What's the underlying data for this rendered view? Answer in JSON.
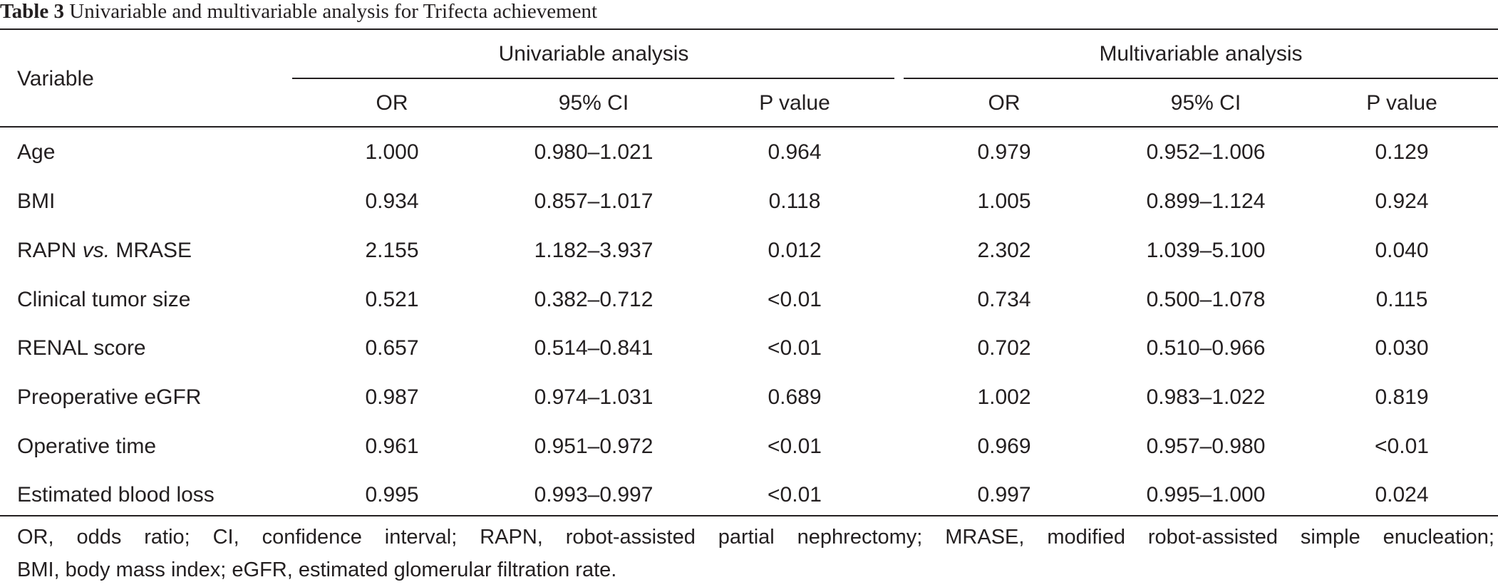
{
  "caption": {
    "label": "Table 3",
    "text": "Univariable and multivariable analysis for Trifecta achievement"
  },
  "header": {
    "variable": "Variable",
    "univariable": "Univariable analysis",
    "multivariable": "Multivariable analysis",
    "or": "OR",
    "ci": "95% CI",
    "p": "P value"
  },
  "rows": [
    {
      "label": "Age",
      "label_italic": "",
      "label_after": "",
      "u_or": "1.000",
      "u_ci": "0.980–1.021",
      "u_p": "0.964",
      "m_or": "0.979",
      "m_ci": "0.952–1.006",
      "m_p": "0.129"
    },
    {
      "label": "BMI",
      "label_italic": "",
      "label_after": "",
      "u_or": "0.934",
      "u_ci": "0.857–1.017",
      "u_p": "0.118",
      "m_or": "1.005",
      "m_ci": "0.899–1.124",
      "m_p": "0.924"
    },
    {
      "label": "RAPN ",
      "label_italic": "vs.",
      "label_after": " MRASE",
      "u_or": "2.155",
      "u_ci": "1.182–3.937",
      "u_p": "0.012",
      "m_or": "2.302",
      "m_ci": "1.039–5.100",
      "m_p": "0.040"
    },
    {
      "label": "Clinical tumor size",
      "label_italic": "",
      "label_after": "",
      "u_or": "0.521",
      "u_ci": "0.382–0.712",
      "u_p": "<0.01",
      "m_or": "0.734",
      "m_ci": "0.500–1.078",
      "m_p": "0.115"
    },
    {
      "label": "RENAL score",
      "label_italic": "",
      "label_after": "",
      "u_or": "0.657",
      "u_ci": "0.514–0.841",
      "u_p": "<0.01",
      "m_or": "0.702",
      "m_ci": "0.510–0.966",
      "m_p": "0.030"
    },
    {
      "label": "Preoperative eGFR",
      "label_italic": "",
      "label_after": "",
      "u_or": "0.987",
      "u_ci": "0.974–1.031",
      "u_p": "0.689",
      "m_or": "1.002",
      "m_ci": "0.983–1.022",
      "m_p": "0.819"
    },
    {
      "label": "Operative time",
      "label_italic": "",
      "label_after": "",
      "u_or": "0.961",
      "u_ci": "0.951–0.972",
      "u_p": "<0.01",
      "m_or": "0.969",
      "m_ci": "0.957–0.980",
      "m_p": "<0.01"
    },
    {
      "label": "Estimated blood loss",
      "label_italic": "",
      "label_after": "",
      "u_or": "0.995",
      "u_ci": "0.993–0.997",
      "u_p": "<0.01",
      "m_or": "0.997",
      "m_ci": "0.995–1.000",
      "m_p": "0.024"
    }
  ],
  "footnote": {
    "line1": "OR, odds ratio; CI, confidence interval; RAPN, robot-assisted partial nephrectomy; MRASE, modified robot-assisted simple enucleation;",
    "line2": "BMI, body mass index; eGFR, estimated glomerular filtration rate."
  }
}
